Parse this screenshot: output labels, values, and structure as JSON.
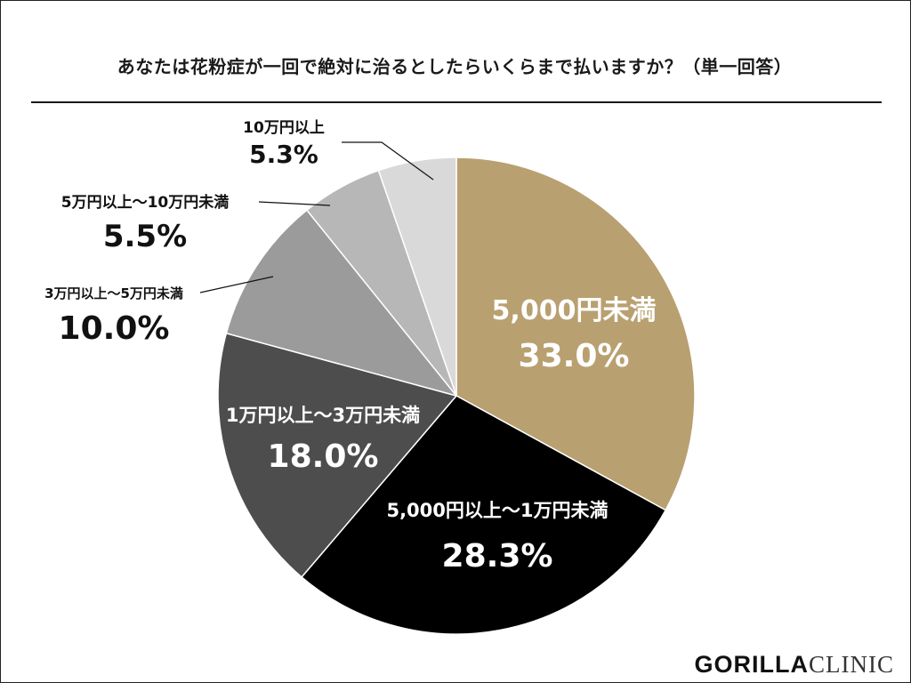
{
  "title": "あなたは花粉症が一回で絶対に治るとしたらいくらまで払いますか？（単一回答）",
  "brand": {
    "part1": "GORILLA",
    "part2": "CLINIC"
  },
  "chart_data": {
    "type": "pie",
    "start": "12 o'clock",
    "direction": "clockwise",
    "slices": [
      {
        "label": "5,000円未満",
        "value": 33.0,
        "display": "33.0%",
        "color": "#b9a070"
      },
      {
        "label": "5,000円以上～1万円未満",
        "value": 28.3,
        "display": "28.3%",
        "color": "#000000"
      },
      {
        "label": "1万円以上～3万円未満",
        "value": 18.0,
        "display": "18.0%",
        "color": "#4d4d4d"
      },
      {
        "label": "3万円以上～5万円未満",
        "value": 10.0,
        "display": "10.0%",
        "color": "#9b9b9b"
      },
      {
        "label": "5万円以上～10万円未満",
        "value": 5.5,
        "display": "5.5%",
        "color": "#b7b7b7"
      },
      {
        "label": "10万円以上",
        "value": 5.3,
        "display": "5.3%",
        "color": "#d9d9d9"
      }
    ]
  }
}
